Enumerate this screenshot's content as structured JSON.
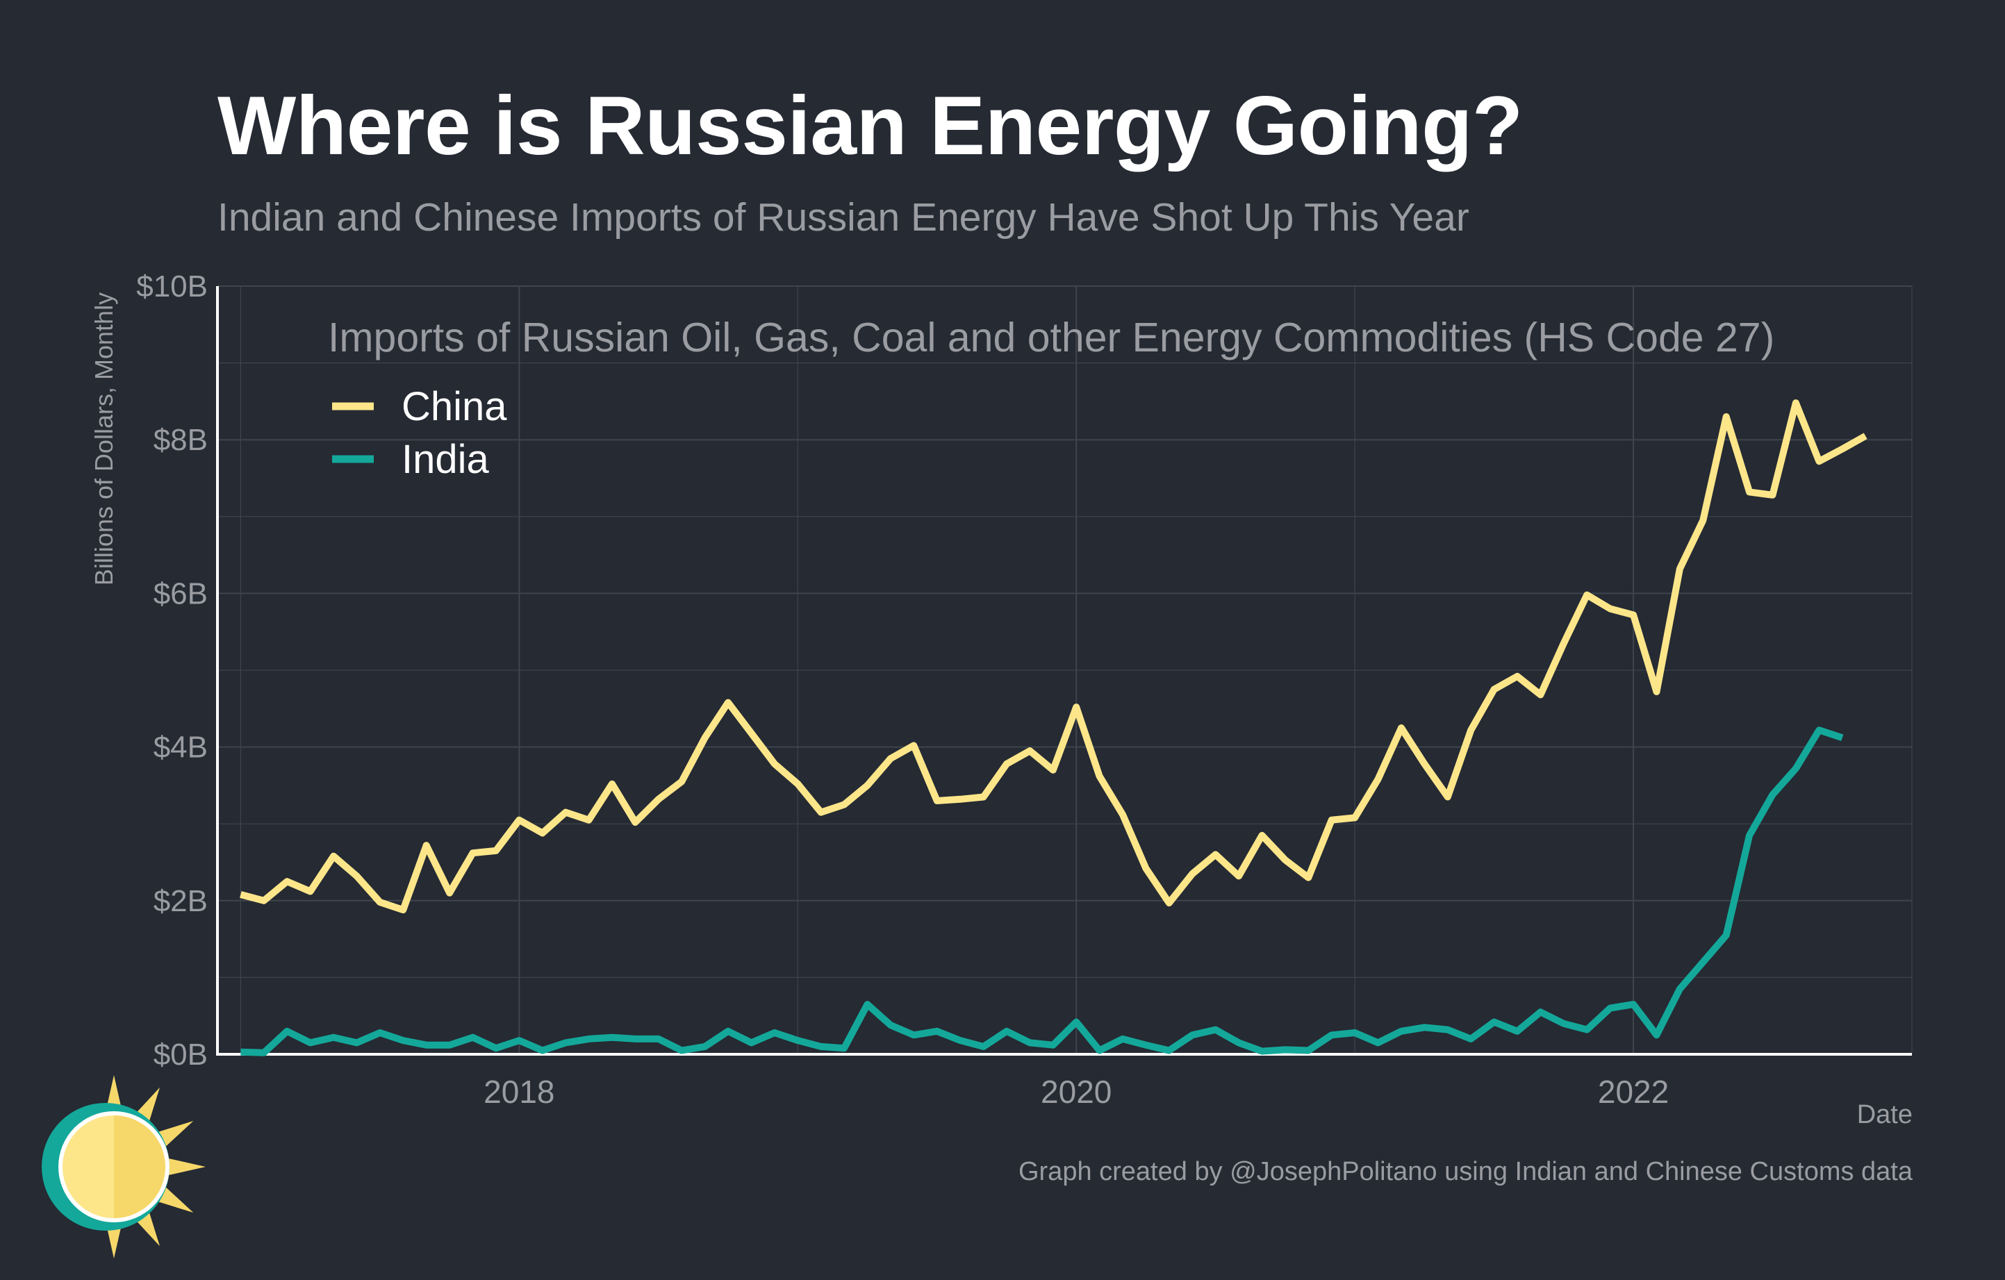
{
  "title": "Where is Russian Energy Going?",
  "subtitle": "Indian and Chinese Imports of Russian Energy Have Shot Up This Year",
  "caption": "Graph created by @JosephPolitano using Indian and Chinese Customs data",
  "colors": {
    "background": "#252a33",
    "china": "#fde68a",
    "india": "#14a89a",
    "grid": "#3f444d",
    "text": "#9a9ca2"
  },
  "chart_data": {
    "type": "line",
    "title": "Where is Russian Energy Going?",
    "subtitle": "Indian and Chinese Imports of Russian Energy Have Shot Up This Year",
    "inner_title": "Imports of Russian Oil, Gas, Coal and other Energy Commodities (HS Code 27)",
    "xlabel": "Date",
    "ylabel": "Billions of Dollars, Monthly",
    "x_start": "2017-01",
    "x_ticks": [
      "2018",
      "2020",
      "2022"
    ],
    "y_ticks": [
      "$0B",
      "$2B",
      "$4B",
      "$6B",
      "$8B",
      "$10B"
    ],
    "y_tick_values": [
      0,
      2,
      4,
      6,
      8,
      10
    ],
    "ylim": [
      0,
      10
    ],
    "xlim": [
      "2016-12",
      "2023-01"
    ],
    "grid": true,
    "legend_position": "top-left",
    "series": [
      {
        "name": "China",
        "color": "#fde68a",
        "values": [
          2.08,
          2.0,
          2.25,
          2.12,
          2.58,
          2.32,
          1.98,
          1.88,
          2.72,
          2.1,
          2.62,
          2.65,
          3.05,
          2.88,
          3.15,
          3.05,
          3.52,
          3.02,
          3.32,
          3.55,
          4.12,
          4.58,
          4.18,
          3.78,
          3.52,
          3.15,
          3.25,
          3.5,
          3.85,
          4.02,
          3.3,
          3.32,
          3.35,
          3.78,
          3.95,
          3.7,
          4.52,
          3.62,
          3.12,
          2.42,
          1.97,
          2.35,
          2.6,
          2.32,
          2.85,
          2.53,
          2.3,
          3.05,
          3.08,
          3.58,
          4.25,
          3.78,
          3.35,
          4.22,
          4.75,
          4.92,
          4.68,
          5.35,
          5.98,
          5.8,
          5.72,
          4.72,
          6.32,
          6.95,
          8.3,
          7.32,
          7.28,
          8.48,
          7.72,
          7.88,
          8.05
        ]
      },
      {
        "name": "India",
        "color": "#14a89a",
        "values": [
          0.03,
          0.02,
          0.3,
          0.15,
          0.22,
          0.15,
          0.28,
          0.18,
          0.12,
          0.12,
          0.22,
          0.08,
          0.18,
          0.05,
          0.15,
          0.2,
          0.22,
          0.2,
          0.2,
          0.05,
          0.1,
          0.3,
          0.15,
          0.28,
          0.18,
          0.1,
          0.08,
          0.65,
          0.38,
          0.25,
          0.3,
          0.18,
          0.1,
          0.3,
          0.15,
          0.12,
          0.42,
          0.05,
          0.2,
          0.12,
          0.05,
          0.25,
          0.32,
          0.15,
          0.04,
          0.06,
          0.05,
          0.25,
          0.28,
          0.15,
          0.3,
          0.35,
          0.32,
          0.2,
          0.42,
          0.3,
          0.55,
          0.4,
          0.32,
          0.6,
          0.65,
          0.25,
          0.85,
          1.2,
          1.55,
          2.85,
          3.38,
          3.72,
          4.22,
          4.12
        ]
      }
    ]
  }
}
